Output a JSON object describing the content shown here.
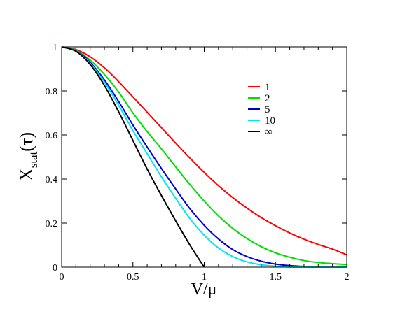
{
  "chart_data": {
    "type": "line",
    "title": "",
    "xlabel": "V/μ",
    "ylabel": {
      "main": "X",
      "subscript": "stat",
      "argument": "(τ)"
    },
    "xlim": [
      0,
      2
    ],
    "ylim": [
      0,
      1
    ],
    "x_ticks": [
      0,
      0.5,
      1,
      1.5,
      2
    ],
    "x_tick_labels": [
      "0",
      "0.5",
      "1",
      "1.5",
      "2"
    ],
    "y_ticks": [
      0,
      0.2,
      0.4,
      0.6,
      0.8,
      1
    ],
    "y_tick_labels": [
      "0",
      "0.2",
      "0.4",
      "0.6",
      "0.8",
      "1"
    ],
    "x_minor_step": 0.1,
    "y_minor_step": 0.1,
    "grid": false,
    "legend_position": "top-right",
    "x": [
      0,
      0.1,
      0.2,
      0.3,
      0.4,
      0.5,
      0.6,
      0.7,
      0.8,
      0.9,
      1.0,
      1.1,
      1.2,
      1.3,
      1.4,
      1.5,
      1.6,
      1.7,
      1.8,
      1.9,
      2.0
    ],
    "series": [
      {
        "name": "1",
        "color": "#ff0000",
        "values": [
          1.0,
          0.988,
          0.955,
          0.905,
          0.842,
          0.773,
          0.703,
          0.633,
          0.563,
          0.495,
          0.43,
          0.37,
          0.316,
          0.268,
          0.225,
          0.188,
          0.155,
          0.127,
          0.103,
          0.082,
          0.056
        ]
      },
      {
        "name": "2",
        "color": "#00dd00",
        "values": [
          1.0,
          0.985,
          0.94,
          0.875,
          0.795,
          0.7,
          0.615,
          0.537,
          0.455,
          0.375,
          0.3,
          0.233,
          0.176,
          0.13,
          0.093,
          0.065,
          0.045,
          0.03,
          0.021,
          0.016,
          0.012
        ]
      },
      {
        "name": "5",
        "color": "#0000cc",
        "values": [
          1.0,
          0.982,
          0.93,
          0.85,
          0.752,
          0.645,
          0.545,
          0.448,
          0.355,
          0.265,
          0.19,
          0.128,
          0.08,
          0.048,
          0.027,
          0.014,
          0.007,
          0.003,
          0.001,
          0.0005,
          0.0
        ]
      },
      {
        "name": "10",
        "color": "#00e5ee",
        "values": [
          1.0,
          0.981,
          0.925,
          0.84,
          0.735,
          0.62,
          0.515,
          0.41,
          0.313,
          0.22,
          0.145,
          0.087,
          0.048,
          0.024,
          0.011,
          0.004,
          0.001,
          0.0003,
          0.0,
          0.0,
          0.0
        ]
      },
      {
        "name": "∞",
        "color": "#000000",
        "values": [
          1.0,
          0.98,
          0.92,
          0.825,
          0.705,
          0.575,
          0.445,
          0.325,
          0.21,
          0.1,
          0.0,
          null,
          null,
          null,
          null,
          null,
          null,
          null,
          null,
          null,
          null
        ]
      }
    ]
  }
}
